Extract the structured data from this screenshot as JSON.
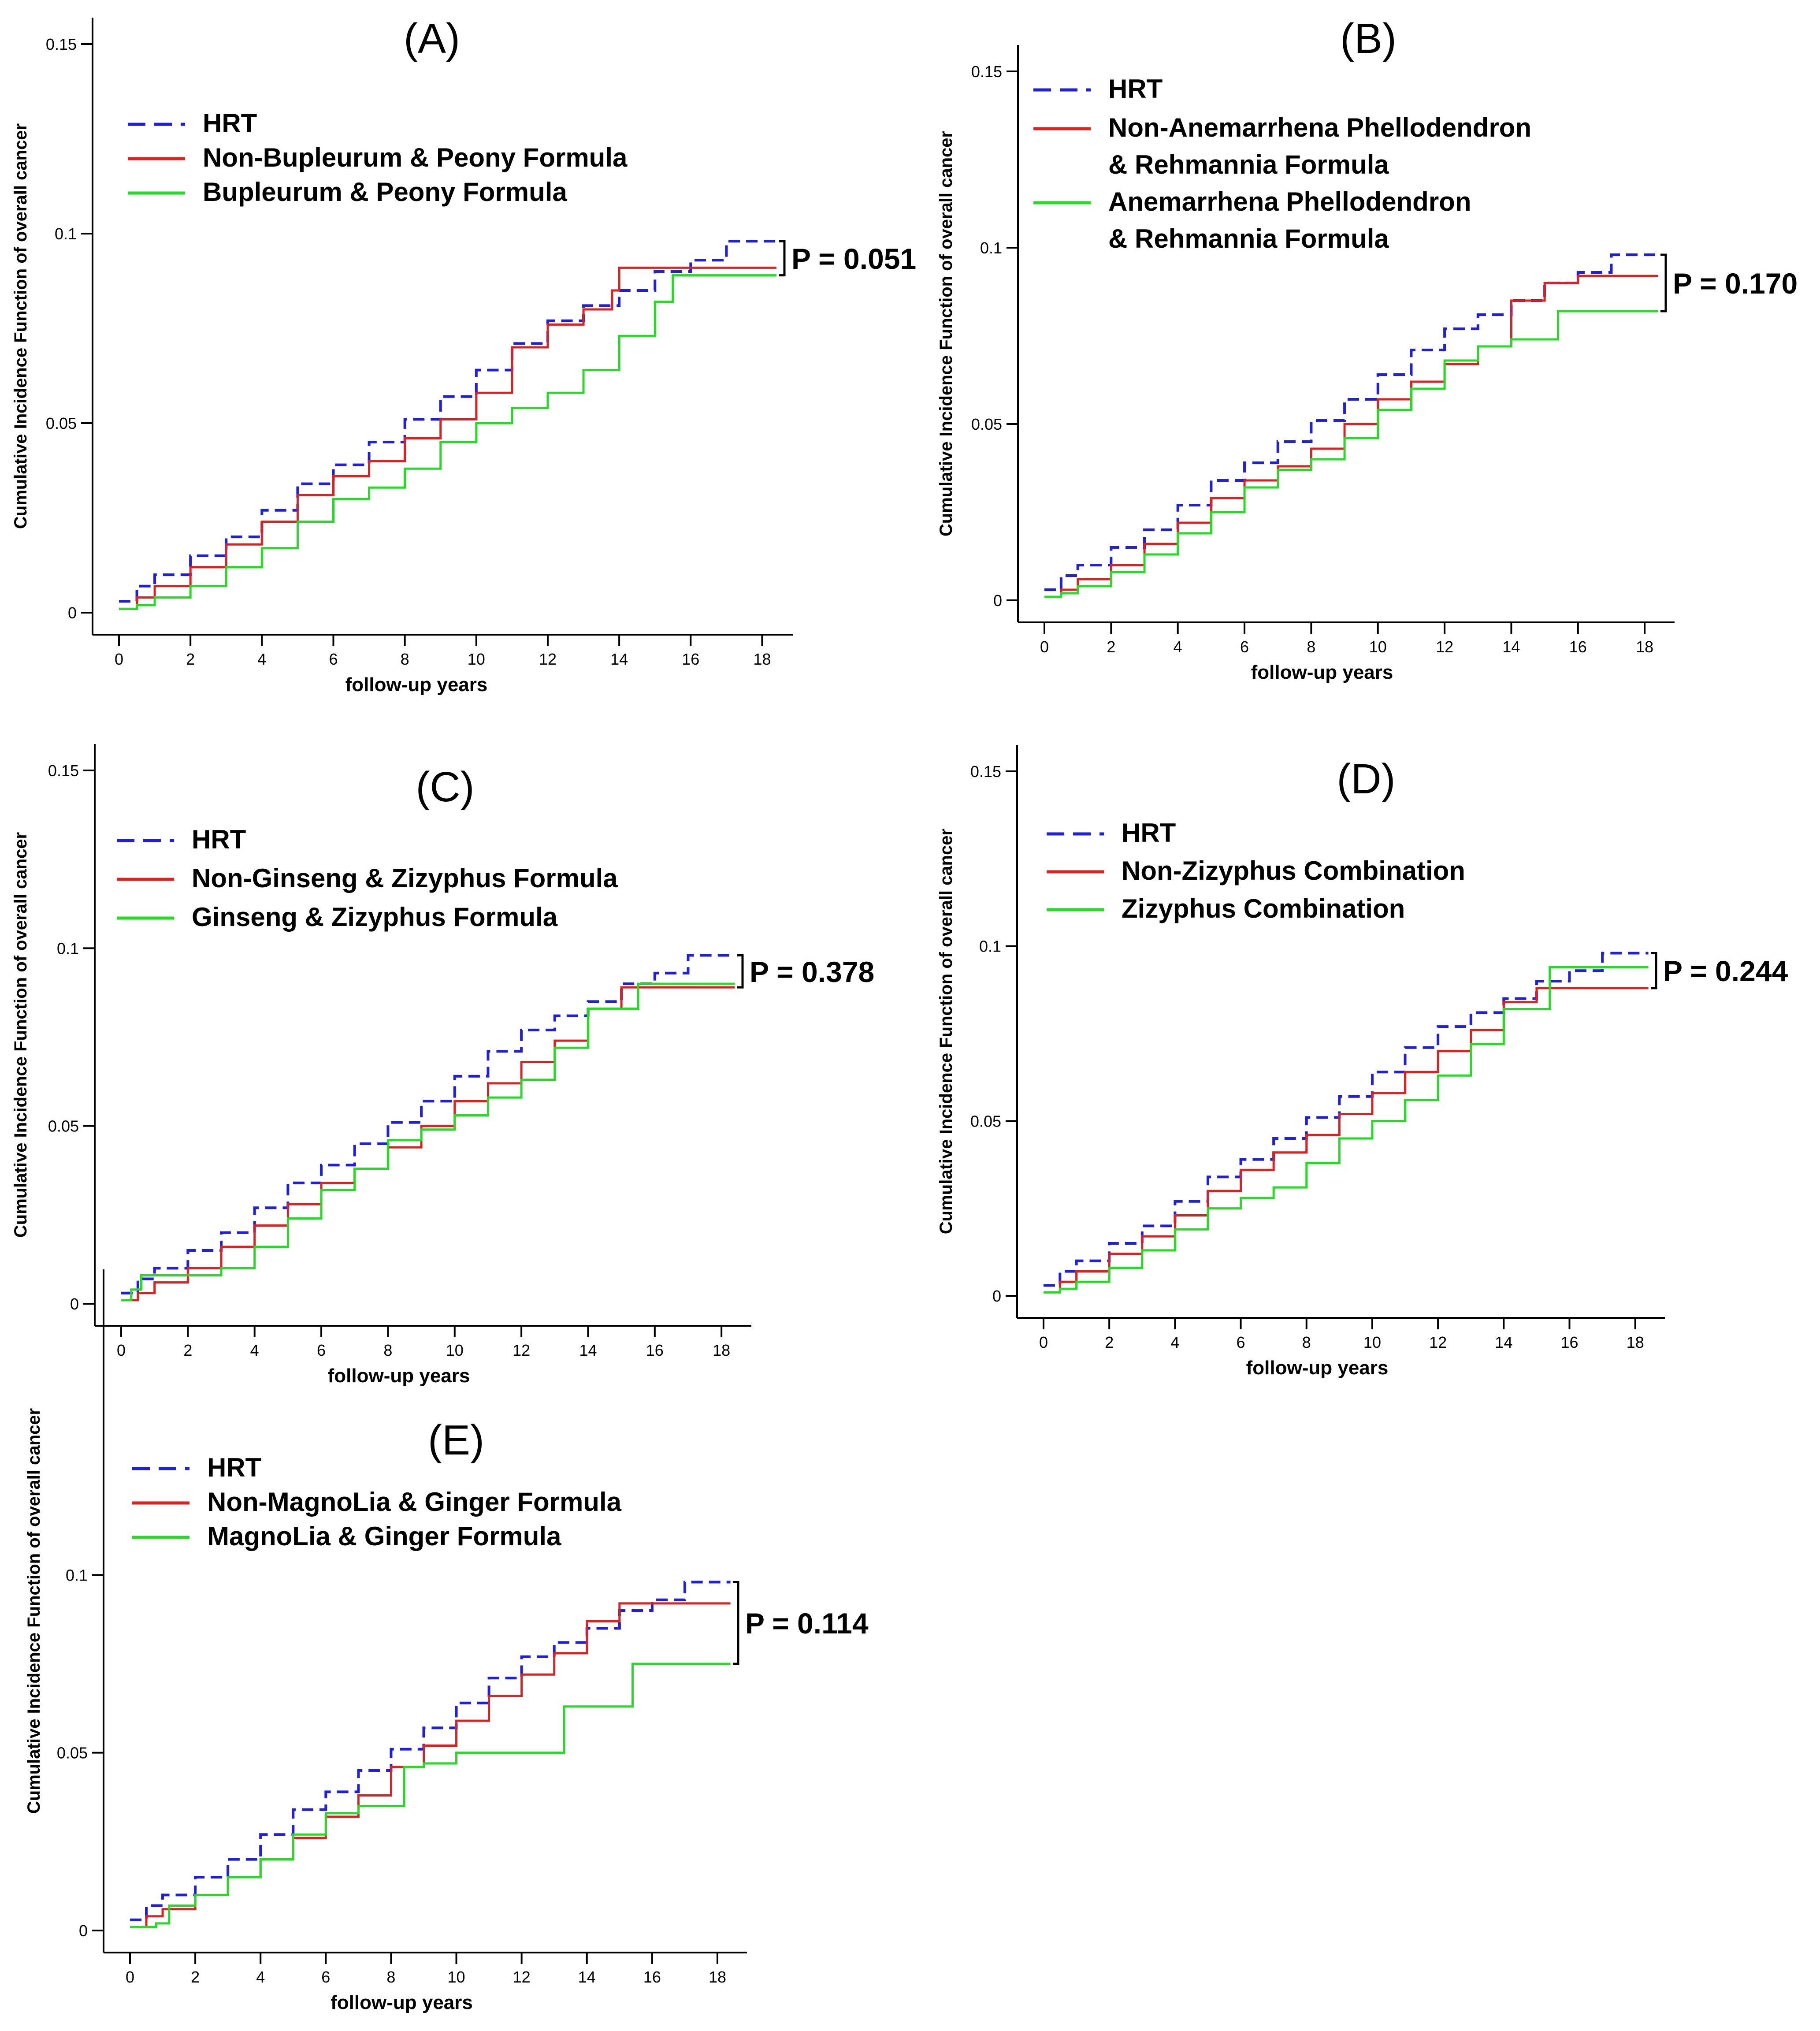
{
  "chart_data": [
    {
      "type": "line",
      "panel": "(A)",
      "title": "(A)",
      "xlabel": "follow-up years",
      "ylabel": "Cumulative Incidence Function of overall cancer",
      "xlim": [
        0,
        18.5
      ],
      "ylim": [
        0,
        0.15
      ],
      "x_ticks": [
        0,
        2,
        4,
        6,
        8,
        10,
        12,
        14,
        16,
        18
      ],
      "y_ticks": [
        0,
        0.05,
        0.1,
        0.15
      ],
      "y_tick_labels": [
        "0",
        "0.05",
        "0.1",
        "0.15"
      ],
      "pvalue": "P = 0.051",
      "series": [
        {
          "name": "HRT",
          "color": "#1f1fe0",
          "dash": true,
          "x": [
            0,
            0.5,
            1,
            2,
            3,
            4,
            5,
            6,
            7,
            8,
            9,
            10,
            11,
            12,
            13,
            14,
            15,
            16,
            17,
            18.4
          ],
          "y": [
            0.003,
            0.007,
            0.01,
            0.015,
            0.02,
            0.027,
            0.034,
            0.039,
            0.045,
            0.051,
            0.057,
            0.064,
            0.071,
            0.077,
            0.081,
            0.085,
            0.09,
            0.093,
            0.098,
            0.098
          ]
        },
        {
          "name": "Non-Bupleurum & Peony Formula",
          "color": "#e01f1f",
          "dash": false,
          "x": [
            0,
            0.5,
            1,
            2,
            3,
            4,
            5,
            6,
            7,
            8,
            9,
            10,
            11,
            12,
            13,
            13.8,
            14,
            15,
            16,
            18.4
          ],
          "y": [
            0.001,
            0.004,
            0.007,
            0.012,
            0.018,
            0.024,
            0.031,
            0.036,
            0.04,
            0.046,
            0.051,
            0.058,
            0.07,
            0.076,
            0.08,
            0.085,
            0.091,
            0.091,
            0.091,
            0.091
          ]
        },
        {
          "name": "Bupleurum & Peony Formula",
          "color": "#22dd22",
          "dash": false,
          "x": [
            0,
            0.5,
            1,
            2,
            3,
            4,
            5,
            6,
            7,
            8,
            9,
            10,
            11,
            12,
            13,
            14,
            15,
            15.5,
            16,
            18.4
          ],
          "y": [
            0.001,
            0.002,
            0.004,
            0.007,
            0.012,
            0.017,
            0.024,
            0.03,
            0.033,
            0.038,
            0.045,
            0.05,
            0.054,
            0.058,
            0.064,
            0.073,
            0.082,
            0.089,
            0.089,
            0.089
          ]
        }
      ]
    },
    {
      "type": "line",
      "panel": "(B)",
      "title": "(B)",
      "xlabel": "follow-up years",
      "ylabel": "Cumulative Incidence Function of overall cancer",
      "xlim": [
        0,
        18.5
      ],
      "ylim": [
        0,
        0.15
      ],
      "x_ticks": [
        0,
        2,
        4,
        6,
        8,
        10,
        12,
        14,
        16,
        18
      ],
      "y_ticks": [
        0,
        0.05,
        0.1,
        0.15
      ],
      "y_tick_labels": [
        "0",
        "0.05",
        "0.1",
        "0.15"
      ],
      "pvalue": "P = 0.170",
      "series": [
        {
          "name": "HRT",
          "color": "#1f1fe0",
          "dash": true,
          "x": [
            0,
            0.5,
            1,
            2,
            3,
            4,
            5,
            6,
            7,
            8,
            9,
            10,
            11,
            12,
            13,
            14,
            15,
            16,
            17,
            18.4
          ],
          "y": [
            0.003,
            0.007,
            0.01,
            0.015,
            0.02,
            0.027,
            0.034,
            0.039,
            0.045,
            0.051,
            0.057,
            0.064,
            0.071,
            0.077,
            0.081,
            0.085,
            0.09,
            0.093,
            0.098,
            0.098
          ]
        },
        {
          "name": "Non-Anemarrhena Phellodendron & Rehmannia Formula",
          "color": "#e01f1f",
          "dash": false,
          "x": [
            0,
            0.5,
            1,
            2,
            3,
            4,
            5,
            6,
            7,
            8,
            9,
            10,
            11,
            12,
            13,
            14,
            15,
            16,
            17,
            18.4
          ],
          "y": [
            0.001,
            0.003,
            0.006,
            0.01,
            0.016,
            0.022,
            0.029,
            0.034,
            0.038,
            0.043,
            0.05,
            0.057,
            0.062,
            0.067,
            0.072,
            0.085,
            0.09,
            0.092,
            0.092,
            0.092
          ]
        },
        {
          "name": "Anemarrhena Phellodendron & Rehmannia Formula",
          "color": "#22dd22",
          "dash": false,
          "x": [
            0,
            0.5,
            1,
            2,
            3,
            4,
            5,
            6,
            7,
            8,
            9,
            10,
            11,
            12,
            13,
            14,
            15,
            15.4,
            18.4
          ],
          "y": [
            0.001,
            0.002,
            0.004,
            0.008,
            0.013,
            0.019,
            0.025,
            0.032,
            0.037,
            0.04,
            0.046,
            0.054,
            0.06,
            0.068,
            0.072,
            0.074,
            0.074,
            0.082,
            0.082
          ]
        }
      ]
    },
    {
      "type": "line",
      "panel": "(C)",
      "title": "(C)",
      "xlabel": "follow-up years",
      "ylabel": "Cumulative Incidence Function of overall cancer",
      "xlim": [
        0,
        18.5
      ],
      "ylim": [
        0,
        0.15
      ],
      "x_ticks": [
        0,
        2,
        4,
        6,
        8,
        10,
        12,
        14,
        16,
        18
      ],
      "y_ticks": [
        0,
        0.05,
        0.1,
        0.15
      ],
      "y_tick_labels": [
        "0",
        "0.05",
        "0.1",
        "0.15"
      ],
      "pvalue": "P = 0.378",
      "series": [
        {
          "name": "HRT",
          "color": "#1f1fe0",
          "dash": true,
          "x": [
            0,
            0.5,
            1,
            2,
            3,
            4,
            5,
            6,
            7,
            8,
            9,
            10,
            11,
            12,
            13,
            14,
            15,
            16,
            17,
            18.4
          ],
          "y": [
            0.003,
            0.007,
            0.01,
            0.015,
            0.02,
            0.027,
            0.034,
            0.039,
            0.045,
            0.051,
            0.057,
            0.064,
            0.071,
            0.077,
            0.081,
            0.085,
            0.09,
            0.093,
            0.098,
            0.098
          ]
        },
        {
          "name": "Non-Ginseng & Zizyphus Formula",
          "color": "#e01f1f",
          "dash": false,
          "x": [
            0,
            0.5,
            1,
            2,
            3,
            4,
            5,
            6,
            7,
            8,
            9,
            10,
            11,
            12,
            13,
            14,
            15,
            16,
            17,
            18.4
          ],
          "y": [
            0.001,
            0.003,
            0.006,
            0.01,
            0.016,
            0.022,
            0.028,
            0.034,
            0.038,
            0.044,
            0.05,
            0.057,
            0.062,
            0.068,
            0.074,
            0.083,
            0.089,
            0.089,
            0.089,
            0.089
          ]
        },
        {
          "name": "Ginseng & Zizyphus Formula",
          "color": "#22dd22",
          "dash": false,
          "x": [
            0,
            0.3,
            0.6,
            1,
            2,
            3,
            4,
            5,
            6,
            7,
            8,
            9,
            10,
            11,
            12,
            13,
            14,
            15,
            15.5,
            18.4
          ],
          "y": [
            0.001,
            0.004,
            0.008,
            0.008,
            0.008,
            0.01,
            0.016,
            0.024,
            0.032,
            0.038,
            0.046,
            0.049,
            0.053,
            0.058,
            0.063,
            0.072,
            0.083,
            0.083,
            0.09,
            0.09
          ]
        }
      ]
    },
    {
      "type": "line",
      "panel": "(D)",
      "title": "(D)",
      "xlabel": "follow-up years",
      "ylabel": "Cumulative Incidence Function of overall cancer",
      "xlim": [
        0,
        18.5
      ],
      "ylim": [
        0,
        0.15
      ],
      "x_ticks": [
        0,
        2,
        4,
        6,
        8,
        10,
        12,
        14,
        16,
        18
      ],
      "y_ticks": [
        0,
        0.05,
        0.1,
        0.15
      ],
      "y_tick_labels": [
        "0",
        "0.05",
        "0.1",
        "0.15"
      ],
      "pvalue": "P = 0.244",
      "series": [
        {
          "name": "HRT",
          "color": "#1f1fe0",
          "dash": true,
          "x": [
            0,
            0.5,
            1,
            2,
            3,
            4,
            5,
            6,
            7,
            8,
            9,
            10,
            11,
            12,
            13,
            14,
            15,
            16,
            17,
            18.4
          ],
          "y": [
            0.003,
            0.007,
            0.01,
            0.015,
            0.02,
            0.027,
            0.034,
            0.039,
            0.045,
            0.051,
            0.057,
            0.064,
            0.071,
            0.077,
            0.081,
            0.085,
            0.09,
            0.093,
            0.098,
            0.098
          ]
        },
        {
          "name": "Non-Zizyphus Combination",
          "color": "#e01f1f",
          "dash": false,
          "x": [
            0,
            0.5,
            1,
            2,
            3,
            4,
            5,
            6,
            7,
            8,
            9,
            10,
            11,
            12,
            13,
            14,
            15,
            16,
            17,
            18.4
          ],
          "y": [
            0.001,
            0.004,
            0.007,
            0.012,
            0.017,
            0.023,
            0.03,
            0.036,
            0.041,
            0.046,
            0.052,
            0.058,
            0.064,
            0.07,
            0.076,
            0.084,
            0.088,
            0.088,
            0.088,
            0.088
          ]
        },
        {
          "name": "Zizyphus Combination",
          "color": "#22dd22",
          "dash": false,
          "x": [
            0,
            0.5,
            1,
            2,
            3,
            4,
            5,
            6,
            7,
            8,
            9,
            10,
            11,
            12,
            13,
            14,
            15,
            15.4,
            16,
            18.4
          ],
          "y": [
            0.001,
            0.002,
            0.004,
            0.008,
            0.013,
            0.019,
            0.025,
            0.028,
            0.031,
            0.038,
            0.045,
            0.05,
            0.056,
            0.063,
            0.072,
            0.082,
            0.082,
            0.094,
            0.094,
            0.094
          ]
        }
      ]
    },
    {
      "type": "line",
      "panel": "(E)",
      "title": "(E)",
      "xlabel": "follow-up years",
      "ylabel": "Cumulative Incidence Function of overall cancer",
      "xlim": [
        0,
        18.5
      ],
      "ylim": [
        0,
        0.15
      ],
      "x_ticks": [
        0,
        2,
        4,
        6,
        8,
        10,
        12,
        14,
        16,
        18
      ],
      "y_ticks": [
        0,
        0.05,
        0.1
      ],
      "y_tick_labels": [
        "0",
        "0.05",
        "0.1"
      ],
      "pvalue": "P = 0.114",
      "series": [
        {
          "name": "HRT",
          "color": "#1f1fe0",
          "dash": true,
          "x": [
            0,
            0.5,
            1,
            2,
            3,
            4,
            5,
            6,
            7,
            8,
            9,
            10,
            11,
            12,
            13,
            14,
            15,
            16,
            17,
            18.4
          ],
          "y": [
            0.003,
            0.007,
            0.01,
            0.015,
            0.02,
            0.027,
            0.034,
            0.039,
            0.045,
            0.051,
            0.057,
            0.064,
            0.071,
            0.077,
            0.081,
            0.085,
            0.09,
            0.093,
            0.098,
            0.098
          ]
        },
        {
          "name": "Non-MagnoLia & Ginger Formula",
          "color": "#e01f1f",
          "dash": false,
          "x": [
            0,
            0.5,
            1,
            2,
            3,
            4,
            5,
            6,
            7,
            8,
            9,
            10,
            11,
            12,
            13,
            14,
            15,
            16,
            17,
            18.4
          ],
          "y": [
            0.001,
            0.004,
            0.006,
            0.01,
            0.015,
            0.02,
            0.026,
            0.032,
            0.038,
            0.046,
            0.052,
            0.059,
            0.066,
            0.072,
            0.078,
            0.087,
            0.092,
            0.092,
            0.092,
            0.092
          ]
        },
        {
          "name": "MagnoLia & Ginger Formula",
          "color": "#22dd22",
          "dash": false,
          "x": [
            0,
            0.8,
            1.2,
            2,
            3,
            4,
            5,
            6,
            7,
            8,
            8.4,
            9,
            10,
            11,
            12,
            13.2,
            13.3,
            15,
            15.4,
            18.4
          ],
          "y": [
            0.001,
            0.002,
            0.007,
            0.01,
            0.015,
            0.02,
            0.027,
            0.033,
            0.035,
            0.035,
            0.046,
            0.047,
            0.05,
            0.05,
            0.05,
            0.05,
            0.063,
            0.063,
            0.075,
            0.075
          ]
        }
      ]
    }
  ]
}
